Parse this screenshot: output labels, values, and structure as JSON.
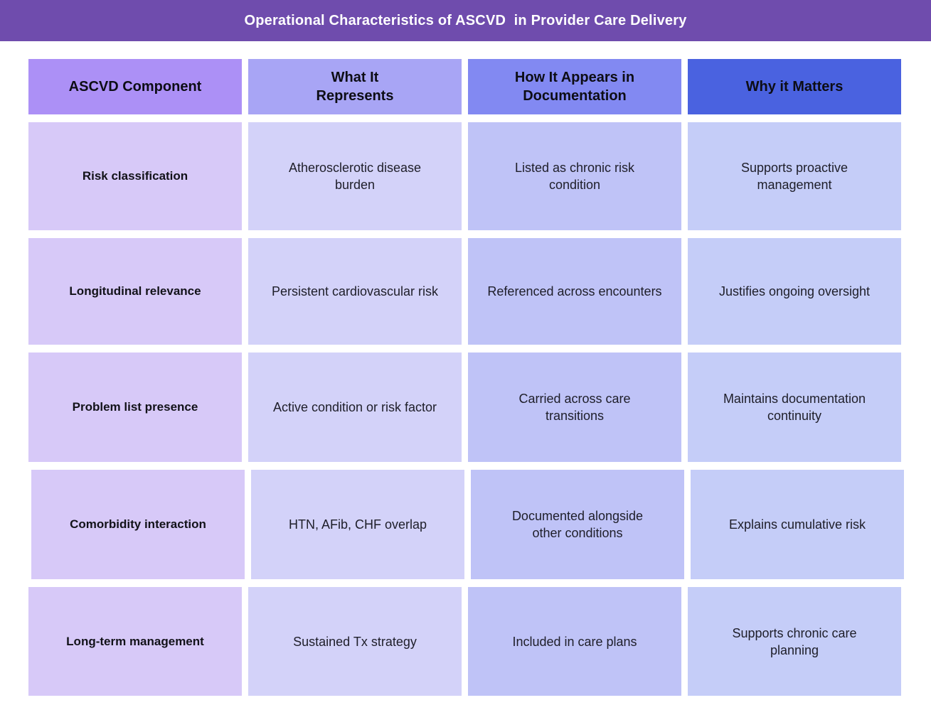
{
  "title_bar": {
    "title": "Operational Characteristics of ASCVD  in Provider Care Delivery",
    "bg": "#6F4CAD",
    "text_color": "#FFFFFF"
  },
  "table": {
    "columns": [
      {
        "label": "ASCVD  Component",
        "header_bg": "#AC90F6",
        "cell_bg": "#D7C9F8"
      },
      {
        "label": "What It\nRepresents",
        "header_bg": "#A8A5F5",
        "cell_bg": "#D3D2F9"
      },
      {
        "label": "How It Appears in\nDocumentation",
        "header_bg": "#8289F2",
        "cell_bg": "#BFC3F7"
      },
      {
        "label": "Why it Matters",
        "header_bg": "#4A62E0",
        "cell_bg": "#C5CDF8"
      }
    ],
    "rows": [
      {
        "component": "Risk classification",
        "represents": "Atherosclerotic disease\nburden",
        "documentation": "Listed as chronic risk\ncondition",
        "matters": "Supports proactive\nmanagement"
      },
      {
        "component": "Longitudinal relevance",
        "represents": "Persistent cardiovascular risk",
        "documentation": "Referenced across encounters",
        "matters": "Justifies ongoing oversight"
      },
      {
        "component": "Problem list presence",
        "represents": "Active condition or risk factor",
        "documentation": "Carried across care\ntransitions",
        "matters": "Maintains documentation\ncontinuity"
      },
      {
        "component": "Comorbidity interaction",
        "represents": "HTN, AFib, CHF overlap",
        "documentation": "Documented alongside\nother conditions",
        "matters": "Explains cumulative risk"
      },
      {
        "component": "Long-term management",
        "represents": "Sustained Tx strategy",
        "documentation": "Included in care plans",
        "matters": "Supports chronic care\nplanning"
      }
    ]
  },
  "chart_data": {
    "type": "table",
    "title": "Operational Characteristics of ASCVD  in Provider Care Delivery",
    "columns": [
      "ASCVD Component",
      "What It Represents",
      "How It Appears in Documentation",
      "Why it Matters"
    ],
    "rows": [
      [
        "Risk classification",
        "Atherosclerotic disease burden",
        "Listed as chronic risk condition",
        "Supports proactive management"
      ],
      [
        "Longitudinal relevance",
        "Persistent cardiovascular risk",
        "Referenced across encounters",
        "Justifies ongoing oversight"
      ],
      [
        "Problem list presence",
        "Active condition or risk factor",
        "Carried across care transitions",
        "Maintains documentation continuity"
      ],
      [
        "Comorbidity interaction",
        "HTN, AFib, CHF overlap",
        "Documented alongside other conditions",
        "Explains cumulative risk"
      ],
      [
        "Long-term management",
        "Sustained Tx strategy",
        "Included in care plans",
        "Supports chronic care planning"
      ]
    ]
  }
}
